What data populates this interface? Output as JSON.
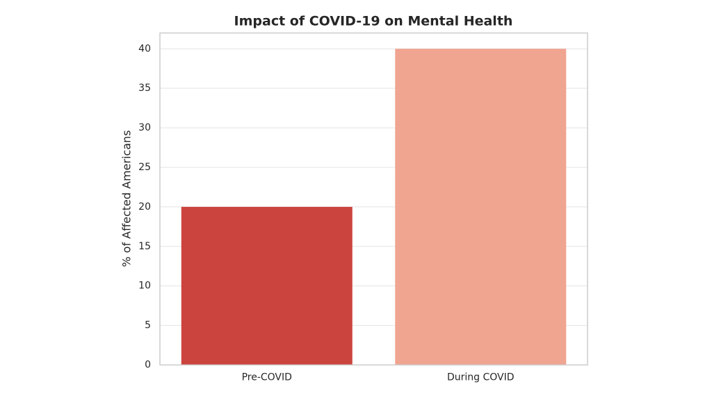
{
  "chart_data": {
    "type": "bar",
    "title": "Impact of COVID-19 on Mental Health",
    "y_label": "% of Affected Americans",
    "categories": [
      "Pre-COVID",
      "During COVID"
    ],
    "values": [
      20,
      40
    ],
    "colors": [
      "#cb443d",
      "#f0a591"
    ],
    "ylim": [
      0,
      42
    ],
    "yticks": [
      0,
      5,
      10,
      15,
      20,
      25,
      30,
      35,
      40
    ],
    "grid": true
  }
}
